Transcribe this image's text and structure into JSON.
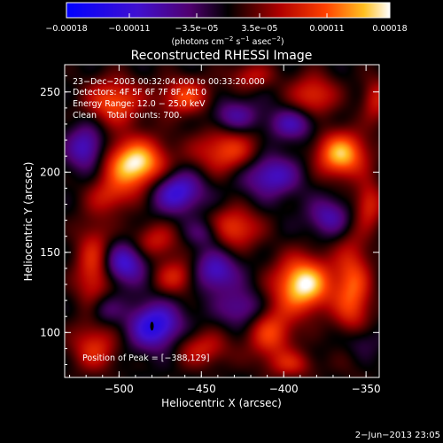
{
  "chart_data": {
    "type": "heatmap",
    "title": "Reconstructed RHESSI Image",
    "xlabel": "Heliocentric X (arcsec)",
    "ylabel": "Heliocentric Y (arcsec)",
    "xlim": [
      -533,
      -342
    ],
    "ylim": [
      72,
      267
    ],
    "xticks": [
      -500,
      -450,
      -400,
      -350
    ],
    "yticks": [
      100,
      150,
      200,
      250
    ],
    "xtick_labels": [
      "−500",
      "−450",
      "−400",
      "−350"
    ],
    "ytick_labels": [
      "100",
      "150",
      "200",
      "250"
    ],
    "colorbar": {
      "min": -0.00018,
      "max": 0.00018,
      "ticks": [
        -0.00018,
        -0.00011,
        -3.5e-05,
        3.5e-05,
        0.00011,
        0.00018
      ],
      "tick_labels": [
        "−0.00018",
        "−0.00011",
        "−3.5e−05",
        "3.5e−05",
        "0.00011",
        "0.00018"
      ],
      "units_main": "(photons cm",
      "units_exp1": "−2",
      "units_mid1": " s",
      "units_exp2": "−1",
      "units_mid2": " asec",
      "units_exp3": "−2",
      "units_end": ")"
    },
    "annotations": {
      "time": "23−Dec−2003 00:32:04.000 to 00:33:20.000",
      "detectors": "Detectors: 4F 5F 6F 7F 8F, Att 0",
      "energy": "Energy Range: 12.0 − 25.0 keV",
      "clean": "Clean    Total counts: 700.",
      "peak": "Position of Peak = [−388,129]"
    },
    "peak": {
      "x": -388,
      "y": 129
    },
    "footer_date": "2−Jun−2013 23:05",
    "blobs": [
      {
        "x": -490,
        "y": 205,
        "sx": 13,
        "sy": 11,
        "a": 1.0
      },
      {
        "x": -388,
        "y": 130,
        "sx": 12,
        "sy": 12,
        "a": 1.0
      },
      {
        "x": -365,
        "y": 211,
        "sx": 11,
        "sy": 10,
        "a": 0.85
      },
      {
        "x": -435,
        "y": 213,
        "sx": 14,
        "sy": 10,
        "a": 0.55
      },
      {
        "x": -503,
        "y": 244,
        "sx": 12,
        "sy": 10,
        "a": 0.6
      },
      {
        "x": -460,
        "y": 247,
        "sx": 11,
        "sy": 8,
        "a": 0.55
      },
      {
        "x": -382,
        "y": 248,
        "sx": 10,
        "sy": 9,
        "a": 0.5
      },
      {
        "x": -430,
        "y": 165,
        "sx": 11,
        "sy": 9,
        "a": 0.55
      },
      {
        "x": -515,
        "y": 140,
        "sx": 8,
        "sy": 20,
        "a": 0.55
      },
      {
        "x": -465,
        "y": 135,
        "sx": 10,
        "sy": 8,
        "a": 0.45
      },
      {
        "x": -408,
        "y": 100,
        "sx": 10,
        "sy": 12,
        "a": 0.55
      },
      {
        "x": -358,
        "y": 125,
        "sx": 8,
        "sy": 25,
        "a": 0.6
      },
      {
        "x": -515,
        "y": 90,
        "sx": 10,
        "sy": 10,
        "a": 0.45
      },
      {
        "x": -450,
        "y": 90,
        "sx": 12,
        "sy": 8,
        "a": 0.4
      },
      {
        "x": -478,
        "y": 157,
        "sx": 10,
        "sy": 8,
        "a": 0.4
      },
      {
        "x": -348,
        "y": 180,
        "sx": 6,
        "sy": 10,
        "a": 0.45
      },
      {
        "x": -505,
        "y": 185,
        "sx": 10,
        "sy": 8,
        "a": 0.35
      },
      {
        "x": -420,
        "y": 260,
        "sx": 10,
        "sy": 6,
        "a": 0.35
      },
      {
        "x": -344,
        "y": 245,
        "sx": 6,
        "sy": 10,
        "a": 0.4
      },
      {
        "x": -395,
        "y": 80,
        "sx": 10,
        "sy": 6,
        "a": 0.35
      },
      {
        "x": -478,
        "y": 104,
        "sx": 11,
        "sy": 10,
        "a": -0.75
      },
      {
        "x": -497,
        "y": 143,
        "sx": 10,
        "sy": 9,
        "a": -0.6
      },
      {
        "x": -442,
        "y": 138,
        "sx": 10,
        "sy": 9,
        "a": -0.55
      },
      {
        "x": -465,
        "y": 188,
        "sx": 11,
        "sy": 9,
        "a": -0.65
      },
      {
        "x": -520,
        "y": 215,
        "sx": 8,
        "sy": 10,
        "a": -0.55
      },
      {
        "x": -408,
        "y": 198,
        "sx": 12,
        "sy": 9,
        "a": -0.55
      },
      {
        "x": -395,
        "y": 230,
        "sx": 10,
        "sy": 7,
        "a": -0.45
      },
      {
        "x": -430,
        "y": 235,
        "sx": 10,
        "sy": 7,
        "a": -0.4
      },
      {
        "x": -372,
        "y": 172,
        "sx": 9,
        "sy": 8,
        "a": -0.45
      },
      {
        "x": -425,
        "y": 115,
        "sx": 10,
        "sy": 8,
        "a": -0.4
      },
      {
        "x": -355,
        "y": 95,
        "sx": 8,
        "sy": 8,
        "a": -0.35
      },
      {
        "x": -448,
        "y": 162,
        "sx": 8,
        "sy": 6,
        "a": -0.3
      },
      {
        "x": -510,
        "y": 115,
        "sx": 7,
        "sy": 7,
        "a": -0.35
      }
    ]
  }
}
